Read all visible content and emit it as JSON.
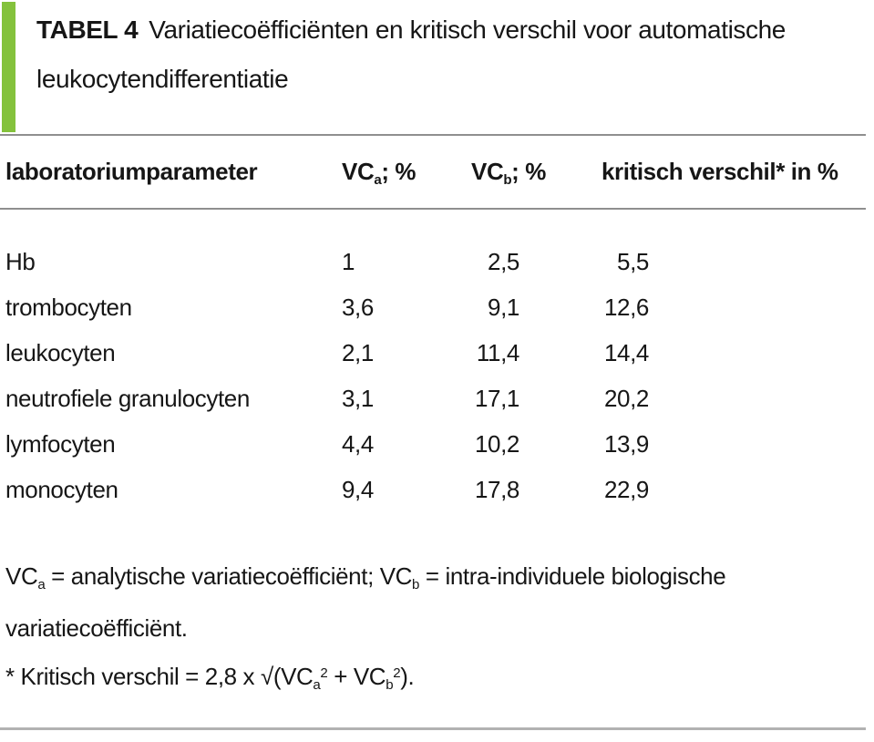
{
  "title": {
    "label": "TABEL 4",
    "text": "Variatiecoëfficiënten en kritisch verschil voor automatische leukocytendifferentiatie"
  },
  "table": {
    "columns": {
      "c1": "laboratoriumparameter",
      "c2": {
        "base": "VC",
        "sub": "a",
        "suffix": "; %"
      },
      "c3": {
        "base": "VC",
        "sub": "b",
        "suffix": "; %"
      },
      "c4": "kritisch verschil* in %"
    },
    "rows": [
      {
        "param": "Hb",
        "vca": "1",
        "vcb": "2,5",
        "kv": "5,5"
      },
      {
        "param": "trombocyten",
        "vca": "3,6",
        "vcb": "9,1",
        "kv": "12,6"
      },
      {
        "param": "leukocyten",
        "vca": "2,1",
        "vcb": "11,4",
        "kv": "14,4"
      },
      {
        "param": "neutrofiele granulocyten",
        "vca": "3,1",
        "vcb": "17,1",
        "kv": "20,2"
      },
      {
        "param": "lymfocyten",
        "vca": "4,4",
        "vcb": "10,2",
        "kv": "13,9"
      },
      {
        "param": "monocyten",
        "vca": "9,4",
        "vcb": "17,8",
        "kv": "22,9"
      }
    ]
  },
  "footnotes": {
    "def": {
      "vc1_base": "VC",
      "vc1_sub": "a",
      "text1": " = analytische variatiecoëfficiënt; ",
      "vc2_base": "VC",
      "vc2_sub": "b",
      "text2": " = intra-individuele biologische"
    },
    "def_cont": "variatiecoëfficiënt.",
    "formula": {
      "prefix": "* Kritisch verschil = 2,8 x √(",
      "vc1_base": "VC",
      "vc1_sub": "a",
      "vc1_sup": "2",
      "plus": " + ",
      "vc2_base": "VC",
      "vc2_sub": "b",
      "vc2_sup": "2",
      "suffix": ")."
    }
  },
  "colors": {
    "accent_green": "#84c23c",
    "rule_gray": "#8f8f8f",
    "rule_bottom_gray": "#b2b2b2",
    "text": "#161616"
  }
}
